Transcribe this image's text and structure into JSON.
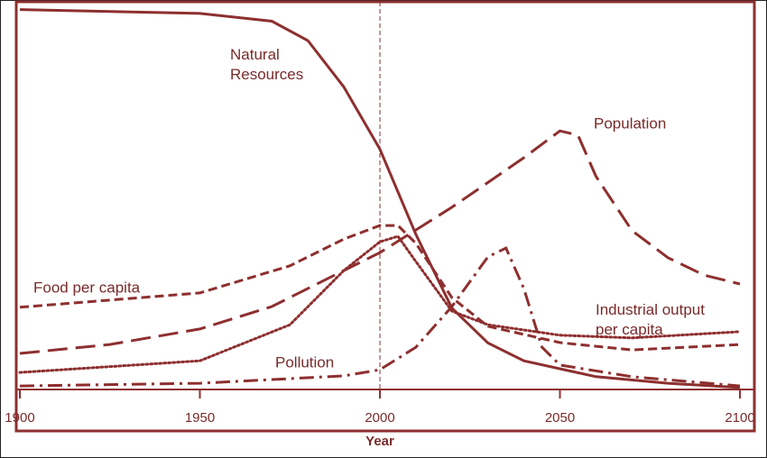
{
  "chart_data": {
    "type": "line",
    "xlabel": "Year",
    "xlim": [
      1899,
      2104
    ],
    "ylim": [
      0,
      100
    ],
    "xticks": [
      1900,
      1950,
      2000,
      2050,
      2100
    ],
    "reference_x": 2000,
    "color": "#8e2f2f",
    "series": [
      {
        "name": "Natural Resources",
        "color": "#8e2f2f",
        "dash": "solid",
        "x": [
          1900,
          1950,
          1970,
          1980,
          1990,
          2000,
          2010,
          2020,
          2030,
          2040,
          2060,
          2080,
          2100
        ],
        "values": [
          98,
          97,
          95,
          90,
          78,
          62,
          40,
          21,
          12,
          7.4,
          3.3,
          1.6,
          0.5
        ]
      },
      {
        "name": "Population",
        "color": "#8e2f2f",
        "dash": "long-dash",
        "x": [
          1900,
          1925,
          1950,
          1970,
          1990,
          2000,
          2020,
          2040,
          2050,
          2055,
          2060,
          2070,
          2080,
          2090,
          2100
        ],
        "values": [
          9.3,
          11.6,
          15.6,
          21.4,
          30.7,
          35.3,
          47,
          59.8,
          66.7,
          65.6,
          55,
          41,
          34,
          29.5,
          27.2
        ]
      },
      {
        "name": "Food per capita",
        "color": "#8e2f2f",
        "dash": "dash",
        "x": [
          1900,
          1950,
          1975,
          1990,
          2000,
          2005,
          2010,
          2020,
          2030,
          2050,
          2070,
          2100
        ],
        "values": [
          21.2,
          24.9,
          31.9,
          38.8,
          42.3,
          42.3,
          37.7,
          23.7,
          16.3,
          12.1,
          10.2,
          11.6
        ]
      },
      {
        "name": "Industrial output per capita",
        "color": "#8e2f2f",
        "dash": "dot",
        "x": [
          1900,
          1950,
          1975,
          1990,
          2000,
          2005,
          2010,
          2020,
          2030,
          2050,
          2070,
          2100
        ],
        "values": [
          4.4,
          7.4,
          16.7,
          30.7,
          38.1,
          39.5,
          33,
          20.2,
          16.7,
          14,
          13.3,
          14.9
        ]
      },
      {
        "name": "Pollution",
        "color": "#8e2f2f",
        "dash": "dash-dot",
        "x": [
          1900,
          1950,
          1990,
          2000,
          2010,
          2020,
          2030,
          2035,
          2040,
          2045,
          2050,
          2070,
          2100
        ],
        "values": [
          0.9,
          1.6,
          3.5,
          5.1,
          10.9,
          21.4,
          34.2,
          36.5,
          26,
          10.9,
          6.3,
          3.3,
          0.9
        ]
      }
    ]
  }
}
